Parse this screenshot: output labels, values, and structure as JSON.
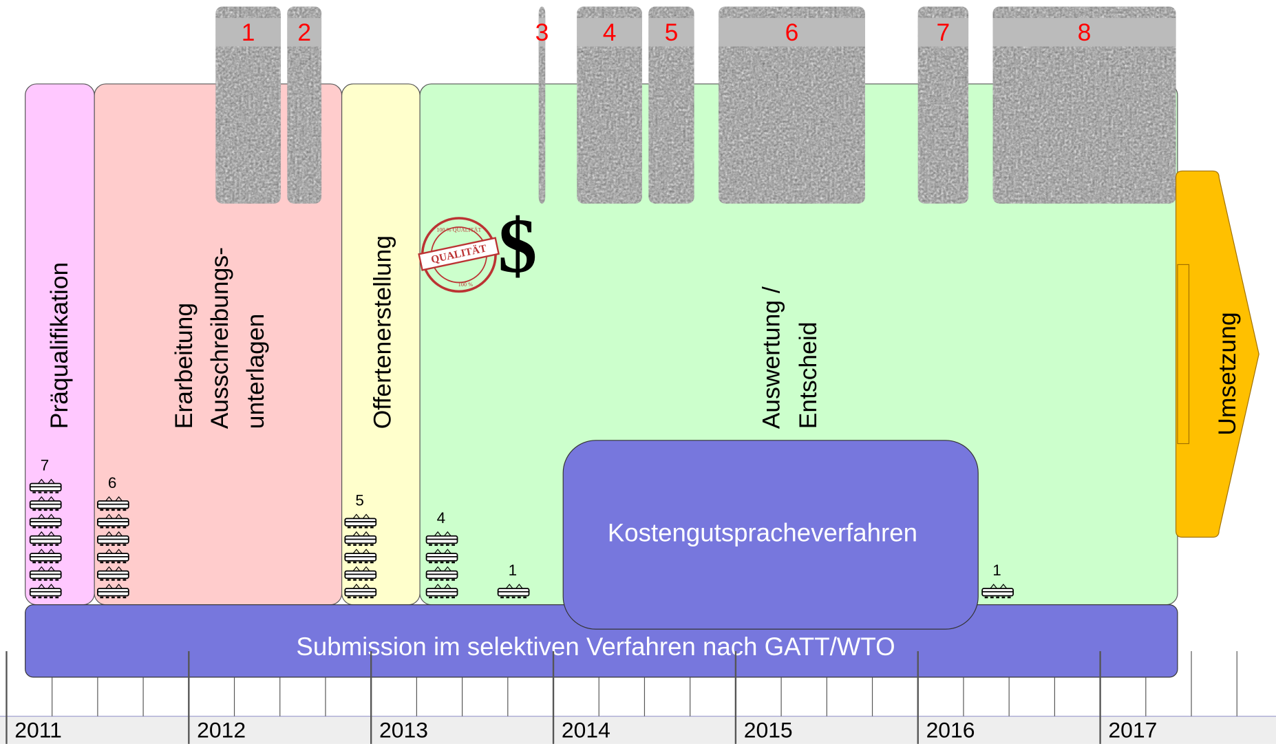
{
  "phases": [
    {
      "lines": [
        "Präqualifikation"
      ]
    },
    {
      "lines": [
        "Erarbeitung",
        "Ausschreibungs-",
        "unterlagen"
      ]
    },
    {
      "lines": [
        "Offertenerstellung"
      ]
    },
    {
      "lines": [
        "Auswertung /",
        "Entscheid"
      ]
    }
  ],
  "implementation": "Umsetzung",
  "boxes": [
    "1",
    "2",
    "3",
    "4",
    "5",
    "6",
    "7",
    "8"
  ],
  "trams": [
    7,
    6,
    5,
    4,
    1,
    1
  ],
  "cost_procedure": "Kostengutspracheverfahren",
  "submission": "Submission im selektiven Verfahren nach GATT/WTO",
  "stamp": {
    "top": "100 % QUALITÄT",
    "label": "QUALITÄT",
    "bottom": "100 %"
  },
  "money": "$",
  "years": [
    "2011",
    "2012",
    "2013",
    "2014",
    "2015",
    "2016",
    "2017"
  ]
}
